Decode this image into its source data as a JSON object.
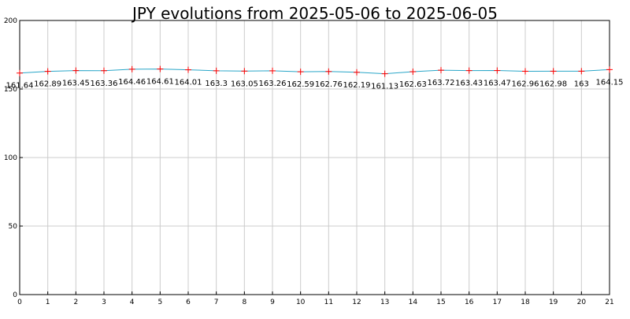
{
  "colors": {
    "background": "#ffffff",
    "line": "#2aa6c8",
    "marker": "#ff0000",
    "grid": "#cccccc",
    "axis": "#000000",
    "text": "#000000"
  },
  "chart_data": {
    "type": "line",
    "title": "JPY evolutions from 2025-05-06 to 2025-06-05",
    "xlabel": "",
    "ylabel": "",
    "x": [
      0,
      1,
      2,
      3,
      4,
      5,
      6,
      7,
      8,
      9,
      10,
      11,
      12,
      13,
      14,
      15,
      16,
      17,
      18,
      19,
      20,
      21
    ],
    "series": [
      {
        "values": [
          161.64,
          162.89,
          163.45,
          163.36,
          164.46,
          164.61,
          164.01,
          163.3,
          163.05,
          163.26,
          162.59,
          162.76,
          162.19,
          161.13,
          162.63,
          163.72,
          163.43,
          163.47,
          162.96,
          162.98,
          163,
          164.15
        ],
        "labels": [
          "161.64",
          "162.89",
          "163.45",
          "163.36",
          "164.46",
          "164.61",
          "164.01",
          "163.3",
          "163.05",
          "163.26",
          "162.59",
          "162.76",
          "162.19",
          "161.13",
          "162.63",
          "163.72",
          "163.43",
          "163.47",
          "162.96",
          "162.98",
          "163",
          "164.15"
        ]
      }
    ],
    "xlim": [
      0,
      21
    ],
    "ylim": [
      0,
      200
    ],
    "xticks": [
      "0",
      "1",
      "2",
      "3",
      "4",
      "5",
      "6",
      "7",
      "8",
      "9",
      "10",
      "11",
      "12",
      "13",
      "14",
      "15",
      "16",
      "17",
      "18",
      "19",
      "20",
      "21"
    ],
    "yticks": [
      "0",
      "50",
      "100",
      "150",
      "200"
    ],
    "grid": true,
    "marker": "plus"
  }
}
